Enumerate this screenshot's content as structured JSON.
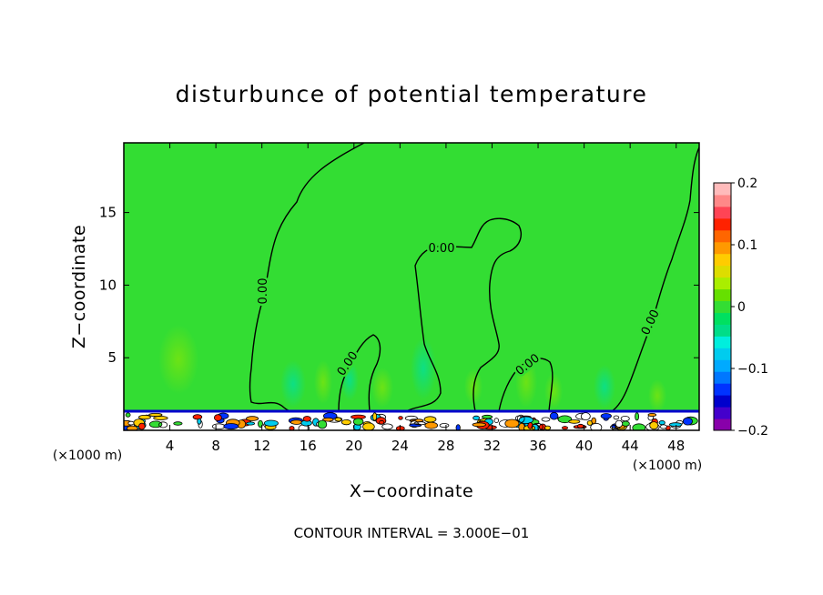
{
  "chart_data": {
    "type": "heatmap",
    "title": "disturbunce of potential temperature",
    "xlabel": "X−coordinate",
    "ylabel": "Z−coordinate",
    "x_unit_left": "(×1000 m)",
    "x_unit_right": "(×1000 m)",
    "xlim": [
      0,
      50
    ],
    "ylim": [
      0,
      19.8
    ],
    "xticks": [
      4,
      8,
      12,
      16,
      20,
      24,
      28,
      32,
      36,
      40,
      44,
      48
    ],
    "yticks": [
      5,
      10,
      15
    ],
    "contour_interval_text": "CONTOUR INTERVAL = 3.000E−01",
    "contour_labels": [
      "0.00",
      "0.00",
      "0.00",
      "0.00",
      "0.00"
    ],
    "colorbar": {
      "range": [
        -0.2,
        0.2
      ],
      "tick_values": [
        0.2,
        0.1,
        0,
        -0.1,
        -0.2
      ],
      "tick_labels": [
        "0.2",
        "0.1",
        "0",
        "−0.1",
        "−0.2"
      ],
      "colors": [
        "#8800aa",
        "#4400cc",
        "#0000cc",
        "#0033ff",
        "#0077ff",
        "#00aaff",
        "#00ccee",
        "#00eedd",
        "#00dd88",
        "#00e060",
        "#33dd33",
        "#66e000",
        "#aaee00",
        "#dddd00",
        "#ffcc00",
        "#ff9900",
        "#ff6600",
        "#ff2200",
        "#ff4455",
        "#ff8888",
        "#ffbbbb"
      ]
    },
    "grid": false,
    "background_color": "#33dd33"
  }
}
